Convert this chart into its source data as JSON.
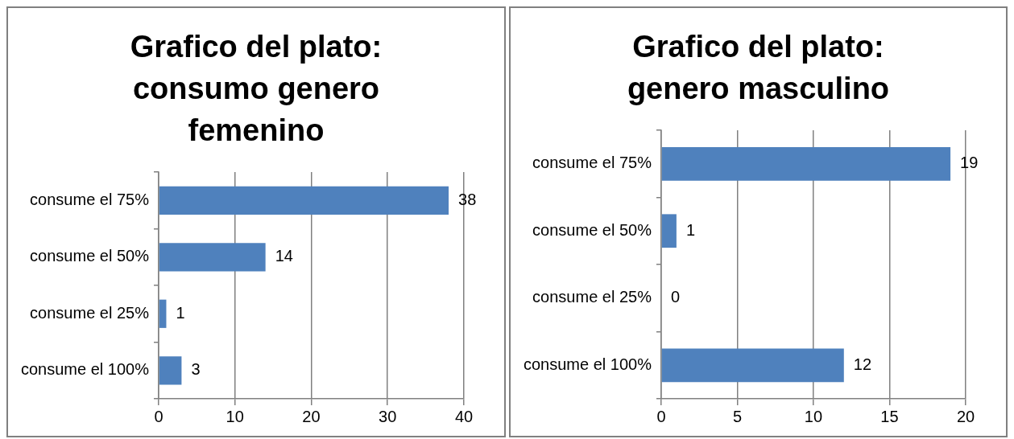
{
  "chart_data": [
    {
      "type": "bar",
      "orientation": "horizontal",
      "title": "Grafico del plato: consumo genero femenino",
      "categories": [
        "consume el 75%",
        "consume el 50%",
        "consume el 25%",
        "consume el 100%"
      ],
      "values": [
        38,
        14,
        1,
        3
      ],
      "color": "#4f81bd",
      "xlim": [
        0,
        40
      ],
      "xticks": [
        0,
        10,
        20,
        30,
        40
      ],
      "grid": "x",
      "data_labels": true,
      "legend": false
    },
    {
      "type": "bar",
      "orientation": "horizontal",
      "title": "Grafico del plato: genero masculino",
      "categories": [
        "consume el 75%",
        "consume el 50%",
        "consume el 25%",
        "consume el 100%"
      ],
      "values": [
        19,
        1,
        0,
        12
      ],
      "color": "#4f81bd",
      "xlim": [
        0,
        20
      ],
      "xticks": [
        0,
        5,
        10,
        15,
        20
      ],
      "grid": "x",
      "data_labels": true,
      "legend": false
    }
  ]
}
